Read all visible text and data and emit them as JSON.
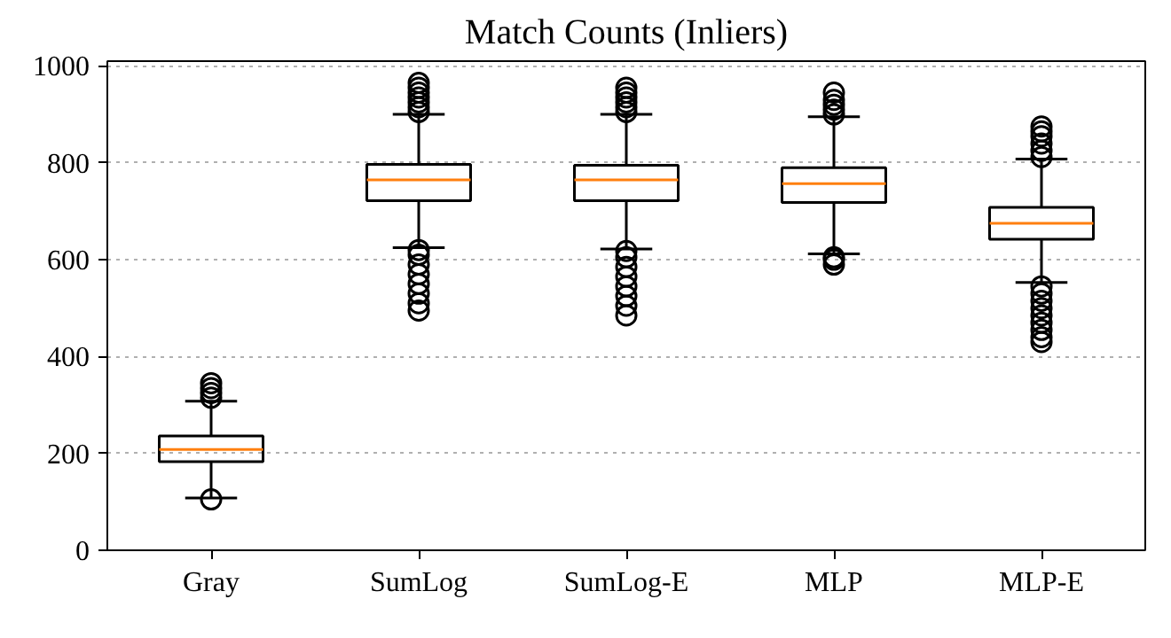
{
  "chart_data": {
    "type": "box",
    "title": "Match Counts (Inliers)",
    "categories": [
      "Gray",
      "SumLog",
      "SumLog-E",
      "MLP",
      "MLP-E"
    ],
    "boxes": [
      {
        "low": 108,
        "q1": 183,
        "median": 208,
        "q3": 236,
        "high": 308,
        "outliers": [
          105,
          315,
          325,
          335,
          345
        ]
      },
      {
        "low": 625,
        "q1": 722,
        "median": 765,
        "q3": 797,
        "high": 900,
        "outliers": [
          495,
          510,
          530,
          550,
          570,
          590,
          610,
          620,
          905,
          915,
          925,
          935,
          945,
          955,
          965
        ]
      },
      {
        "low": 622,
        "q1": 722,
        "median": 765,
        "q3": 795,
        "high": 900,
        "outliers": [
          485,
          505,
          525,
          545,
          565,
          585,
          605,
          618,
          905,
          915,
          925,
          935,
          945,
          955
        ]
      },
      {
        "low": 612,
        "q1": 718,
        "median": 757,
        "q3": 790,
        "high": 895,
        "outliers": [
          590,
          600,
          605,
          900,
          910,
          920,
          930,
          945
        ]
      },
      {
        "low": 553,
        "q1": 642,
        "median": 675,
        "q3": 708,
        "high": 808,
        "outliers": [
          430,
          440,
          455,
          470,
          485,
          500,
          515,
          530,
          545,
          812,
          825,
          840,
          855,
          865,
          875
        ]
      }
    ],
    "color": "#000000",
    "ylim": [
      0,
      1010
    ],
    "yticks": [
      0,
      200,
      400,
      600,
      800,
      1000
    ],
    "grid": "y",
    "marker": "circle"
  }
}
